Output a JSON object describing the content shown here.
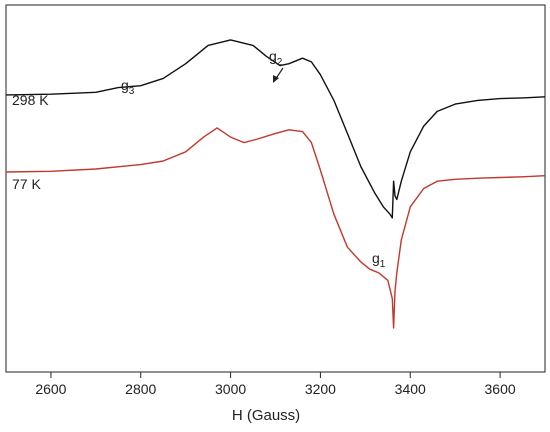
{
  "chart_data": {
    "type": "line",
    "title": "",
    "xlabel": "H (Gauss)",
    "ylabel": "",
    "xlim": [
      2500,
      3700
    ],
    "ylim": [
      0,
      1
    ],
    "x_ticks": [
      2600,
      2800,
      3000,
      3200,
      3400,
      3600
    ],
    "x_tick_labels": [
      "2600",
      "2800",
      "3000",
      "3200",
      "3400",
      "3600"
    ],
    "grid": false,
    "legend": "none",
    "series": [
      {
        "name": "298 K",
        "color": "#111111",
        "x": [
          2500,
          2600,
          2700,
          2750,
          2800,
          2850,
          2900,
          2950,
          3000,
          3050,
          3080,
          3110,
          3130,
          3160,
          3180,
          3200,
          3230,
          3260,
          3290,
          3320,
          3340,
          3355,
          3360,
          3363,
          3366,
          3370,
          3380,
          3400,
          3430,
          3460,
          3500,
          3550,
          3600,
          3650,
          3700
        ],
        "y": [
          0.755,
          0.757,
          0.762,
          0.775,
          0.78,
          0.8,
          0.84,
          0.89,
          0.905,
          0.89,
          0.86,
          0.835,
          0.84,
          0.855,
          0.845,
          0.81,
          0.74,
          0.65,
          0.56,
          0.49,
          0.45,
          0.43,
          0.42,
          0.52,
          0.48,
          0.47,
          0.52,
          0.6,
          0.67,
          0.71,
          0.73,
          0.74,
          0.745,
          0.747,
          0.75
        ]
      },
      {
        "name": "77 K",
        "color": "#c0392b",
        "x": [
          2500,
          2600,
          2700,
          2800,
          2850,
          2900,
          2940,
          2970,
          3000,
          3030,
          3060,
          3100,
          3130,
          3160,
          3180,
          3200,
          3230,
          3260,
          3290,
          3310,
          3330,
          3350,
          3360,
          3363,
          3366,
          3370,
          3380,
          3400,
          3430,
          3460,
          3500,
          3550,
          3600,
          3650,
          3700
        ],
        "y": [
          0.545,
          0.547,
          0.553,
          0.565,
          0.575,
          0.6,
          0.64,
          0.665,
          0.64,
          0.625,
          0.635,
          0.65,
          0.66,
          0.655,
          0.625,
          0.55,
          0.43,
          0.34,
          0.3,
          0.28,
          0.27,
          0.25,
          0.2,
          0.12,
          0.22,
          0.27,
          0.36,
          0.45,
          0.5,
          0.52,
          0.525,
          0.528,
          0.53,
          0.532,
          0.535
        ]
      }
    ],
    "annotations": [
      {
        "id": "label-298",
        "text": "298 K",
        "x": 2520,
        "y": 0.765
      },
      {
        "id": "label-77",
        "text": "77 K",
        "x": 2520,
        "y": 0.56
      },
      {
        "id": "g3",
        "text": "g",
        "sub": "3",
        "x": 2745,
        "y": 0.79
      },
      {
        "id": "g2",
        "text": "g",
        "sub": "2",
        "x": 3090,
        "y": 0.895
      },
      {
        "id": "g1",
        "text": "g",
        "sub": "1",
        "x": 3318,
        "y": 0.395
      }
    ]
  }
}
